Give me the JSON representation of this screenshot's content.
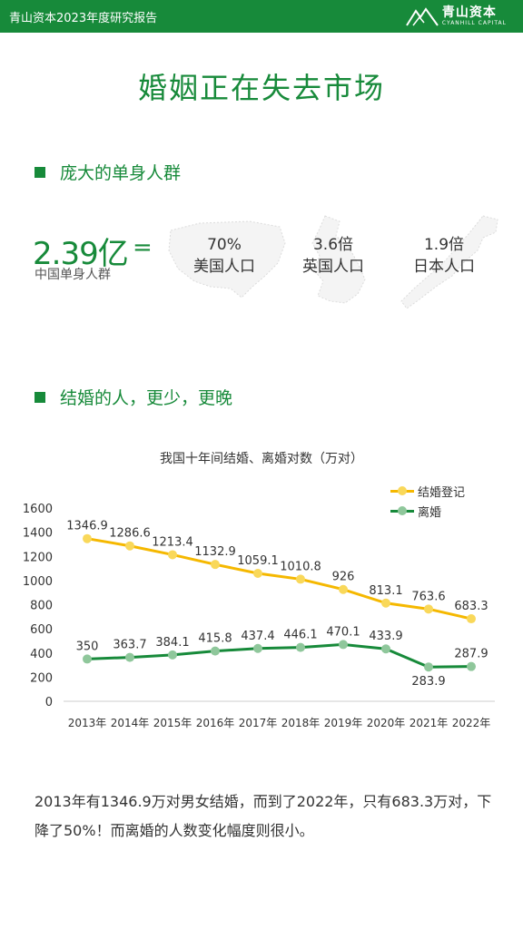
{
  "header": {
    "report_title": "青山资本2023年度研究报告",
    "brand_cn": "青山资本",
    "brand_en": "CYANHILL CAPITAL"
  },
  "page_title": "婚姻正在失去市场",
  "section1": {
    "heading": "庞大的单身人群",
    "big_number": "2.39亿",
    "equals": "=",
    "big_caption": "中国单身人群",
    "stats": [
      {
        "value": "70%",
        "label": "美国人口"
      },
      {
        "value": "3.6倍",
        "label": "英国人口"
      },
      {
        "value": "1.9倍",
        "label": "日本人口"
      }
    ]
  },
  "section2": {
    "heading": "结婚的人，更少，更晚"
  },
  "chart_data": {
    "type": "line",
    "title": "我国十年间结婚、离婚对数（万对）",
    "categories": [
      "2013年",
      "2014年",
      "2015年",
      "2016年",
      "2017年",
      "2018年",
      "2019年",
      "2020年",
      "2021年",
      "2022年"
    ],
    "series": [
      {
        "name": "结婚登记",
        "color": "#f5b800",
        "values": [
          1346.9,
          1286.6,
          1213.4,
          1132.9,
          1059.1,
          1010.8,
          926,
          813.1,
          763.6,
          683.3
        ],
        "labels": [
          "1346.9",
          "1286.6",
          "1213.4",
          "1132.9",
          "1059.1",
          "1010.8",
          "926",
          "813.1",
          "763.6",
          "683.3"
        ]
      },
      {
        "name": "离婚",
        "color": "#178a3a",
        "values": [
          350,
          363.7,
          384.1,
          415.8,
          437.4,
          446.1,
          470.1,
          433.9,
          283.9,
          287.9
        ],
        "labels": [
          "350",
          "363.7",
          "384.1",
          "415.8",
          "437.4",
          "446.1",
          "470.1",
          "433.9",
          "283.9",
          "287.9"
        ]
      }
    ],
    "ylim": [
      0,
      1600
    ],
    "yticks": [
      0,
      200,
      400,
      600,
      800,
      1000,
      1200,
      1400,
      1600
    ],
    "grid": false,
    "legend": "top-right"
  },
  "summary": "2013年有1346.9万对男女结婚，而到了2022年，只有683.3万对，下降了50%！而离婚的人数变化幅度则很小。",
  "colors": {
    "accent": "#178a3a",
    "marriage": "#f5b800",
    "divorce": "#178a3a"
  }
}
